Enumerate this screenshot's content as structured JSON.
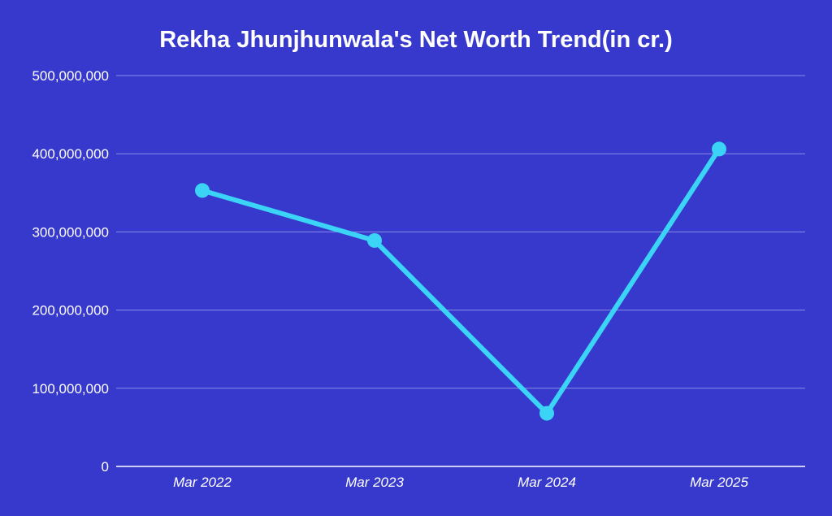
{
  "colors": {
    "background": "#3639CC",
    "line": "#3BD4F7",
    "gridline": "#8A8CE6",
    "axis": "#FFFFFF",
    "text": "#FFFFFF"
  },
  "chart_data": {
    "type": "line",
    "title": "Rekha Jhunjhunwala's Net Worth Trend(in cr.)",
    "xlabel": "",
    "ylabel": "",
    "categories": [
      "Mar 2022",
      "Mar 2023",
      "Mar 2024",
      "Mar 2025"
    ],
    "series": [
      {
        "values": [
          353000000,
          289000000,
          68000000,
          406000000
        ]
      }
    ],
    "ylim": [
      0,
      500000000
    ],
    "y_ticks": [
      "0",
      "100,000,000",
      "200,000,000",
      "300,000,000",
      "400,000,000",
      "500,000,000"
    ],
    "y_tick_values": [
      0,
      100000000,
      200000000,
      300000000,
      400000000,
      500000000
    ],
    "grid": true,
    "legend": "none",
    "markers": true
  }
}
